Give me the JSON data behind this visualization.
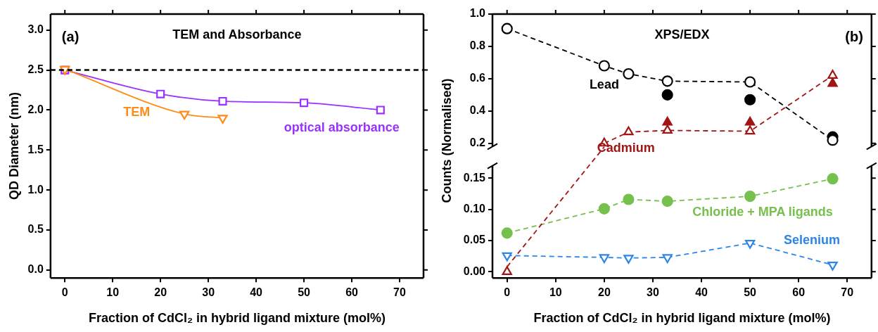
{
  "chart_data": [
    {
      "type": "line",
      "title": "TEM and Absorbance",
      "xlabel": "Fraction of CdCl₂ in hybrid ligand mixture (mol%)",
      "ylabel": "QD Diameter (nm)",
      "annotations": [
        "(a)"
      ],
      "xlim": [
        -3,
        75
      ],
      "xticks": [
        0,
        10,
        20,
        30,
        40,
        50,
        60,
        70
      ],
      "ylim": [
        -0.1,
        3.2
      ],
      "yticks": [
        {
          "value": 0,
          "label": "0.0"
        },
        {
          "value": 0.5,
          "label": "0.5"
        },
        {
          "value": 1,
          "label": "1.0"
        },
        {
          "value": 1.5,
          "label": "1.5"
        },
        {
          "value": 2,
          "label": "2.0"
        },
        {
          "value": 2.5,
          "label": "2.5"
        },
        {
          "value": 3,
          "label": "3.0"
        }
      ],
      "ref_lines": [
        {
          "axis": "y",
          "value": 2.5,
          "color": "#000000",
          "line_style": "dashed"
        }
      ],
      "series": [
        {
          "name": "TEM",
          "type": "line",
          "color": "#ff8c1a",
          "marker": "triangle-down",
          "line_style": "solid",
          "x": [
            0,
            25,
            33
          ],
          "values": [
            2.51,
            1.95,
            1.9
          ]
        },
        {
          "name": "optical absorbance",
          "type": "line",
          "color": "#9b30ff",
          "marker": "square",
          "line_style": "solid",
          "x": [
            0,
            20,
            33,
            50,
            66
          ],
          "values": [
            2.5,
            2.2,
            2.11,
            2.09,
            2.0
          ]
        }
      ]
    },
    {
      "type": "line",
      "title": "XPS/EDX",
      "ylabel": "Counts (Normalised)",
      "annotations": [
        "(b)"
      ],
      "tick_labels": "y",
      "xlim": [
        -3,
        75
      ],
      "xticks": [
        0,
        10,
        20,
        30,
        40,
        50,
        60,
        70
      ],
      "ylim": [
        0.18,
        1.0
      ],
      "yticks": [
        {
          "value": 0.2,
          "label": "0.2"
        },
        {
          "value": 0.4,
          "label": "0.4"
        },
        {
          "value": 0.6,
          "label": "0.6"
        },
        {
          "value": 0.8,
          "label": "0.8"
        },
        {
          "value": 1,
          "label": "1.0"
        }
      ],
      "series": [
        {
          "name": "Lead",
          "type": "line",
          "color": "#000000",
          "marker": "circle",
          "line_style": "dashed",
          "x": [
            0,
            20,
            25,
            33,
            50,
            67
          ],
          "values": [
            0.91,
            0.68,
            0.63,
            0.585,
            0.58,
            0.22
          ]
        },
        {
          "type": "scatter",
          "color": "#000000",
          "marker": "circle",
          "x": [
            33,
            50,
            67
          ],
          "values": [
            0.5,
            0.47,
            0.24
          ]
        },
        {
          "name": "Cadmium",
          "type": "line",
          "color": "#a11515",
          "marker": "triangle",
          "line_style": "dashed",
          "x": [
            20,
            25,
            33,
            50,
            67
          ],
          "values": [
            0.2,
            0.27,
            0.28,
            0.275,
            0.62
          ]
        },
        {
          "type": "scatter",
          "color": "#a11515",
          "marker": "triangle",
          "x": [
            33,
            50,
            67
          ],
          "values": [
            0.33,
            0.33,
            0.57
          ]
        }
      ]
    },
    {
      "type": "line",
      "xlabel": "Fraction of CdCl₂ in hybrid ligand mixture (mol%)",
      "xlim": [
        -3,
        75
      ],
      "xticks": [
        0,
        10,
        20,
        30,
        40,
        50,
        60,
        70
      ],
      "ylim": [
        -0.01,
        0.17
      ],
      "yticks": [
        {
          "value": 0,
          "label": "0.00"
        },
        {
          "value": 0.05,
          "label": "0.05"
        },
        {
          "value": 0.1,
          "label": "0.10"
        },
        {
          "value": 0.15,
          "label": "0.15"
        }
      ],
      "series": [
        {
          "type": "line",
          "color": "#a11515",
          "marker": "triangle",
          "line_style": "dashed",
          "x": [
            0
          ],
          "values": [
            0
          ]
        },
        {
          "name": "Chloride + MPA ligands",
          "type": "line",
          "color": "#76c04e",
          "marker": "none",
          "line_style": "dashed",
          "x": [
            0,
            20,
            25,
            33,
            50,
            67
          ],
          "values": [
            0.062,
            0.101,
            0.116,
            0.113,
            0.121,
            0.149
          ]
        },
        {
          "type": "scatter",
          "color": "#76c04e",
          "marker": "circle",
          "x": [
            0,
            20,
            25,
            33,
            50,
            67
          ],
          "values": [
            0.062,
            0.101,
            0.116,
            0.113,
            0.121,
            0.149
          ]
        },
        {
          "name": "Selenium",
          "type": "line",
          "color": "#2b86e6",
          "marker": "triangle-down",
          "line_style": "dashed",
          "x": [
            0,
            20,
            25,
            33,
            50,
            67
          ],
          "values": [
            0.026,
            0.023,
            0.022,
            0.023,
            0.046,
            0.011
          ]
        }
      ]
    }
  ]
}
